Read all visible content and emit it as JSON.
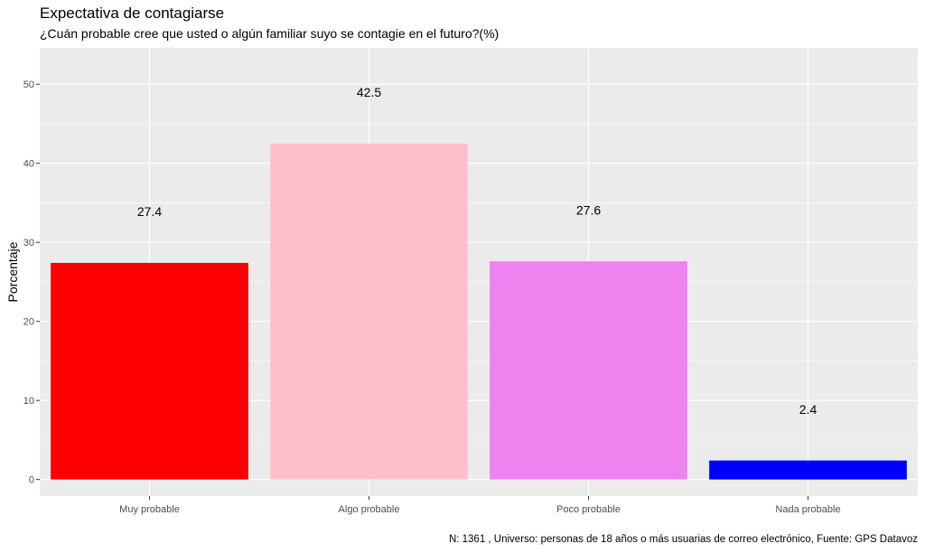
{
  "chart_data": {
    "type": "bar",
    "title": "Expectativa de contagiarse",
    "subtitle": "¿Cuán probable cree que usted o algún familiar suyo se contagie en el futuro?(%)",
    "caption": "N: 1361 , Universo: personas de 18 años o más usuarias de correo electrónico, Fuente: GPS Datavoz",
    "xlabel": "",
    "ylabel": "Porcentaje",
    "categories": [
      "Muy probable",
      "Algo probable",
      "Poco probable",
      "Nada probable"
    ],
    "values": [
      27.4,
      42.5,
      27.6,
      2.4
    ],
    "data_labels": [
      "27.4",
      "42.5",
      "27.6",
      "2.4"
    ],
    "colors": [
      "#ff0000",
      "#ffc0cb",
      "#ee82ee",
      "#0000ff"
    ],
    "ylim": [
      -2.1,
      54.6
    ],
    "yticks": [
      0,
      10,
      20,
      30,
      40,
      50
    ],
    "ytick_labels": [
      "0",
      "10",
      "20",
      "30",
      "40",
      "50"
    ],
    "label_offset": 6.5,
    "grid": true,
    "background": "#ebebeb"
  }
}
